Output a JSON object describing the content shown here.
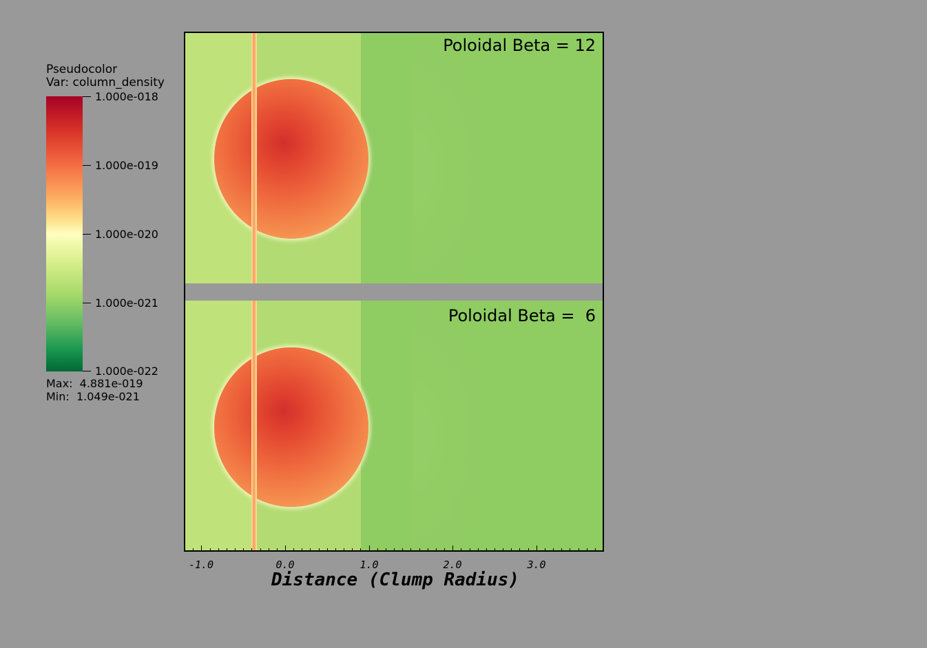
{
  "legend": {
    "title_line1": "Pseudocolor",
    "title_line2": "Var: column_density",
    "ticks": [
      "1.000e-018",
      "1.000e-019",
      "1.000e-020",
      "1.000e-021",
      "1.000e-022"
    ],
    "max_text": "Max:  4.881e-019",
    "min_text": "Min:  1.049e-021"
  },
  "panels": [
    {
      "title": "Poloidal Beta = 12"
    },
    {
      "title": "Poloidal Beta =  6"
    }
  ],
  "axis": {
    "tick_labels": [
      "-1.0",
      "0.0",
      "1.0",
      "2.0",
      "3.0"
    ],
    "title": "Distance (Clump Radius)"
  },
  "colors": {
    "background": "#999999",
    "ambient_left": "#bfe27a",
    "ambient_right": "#8fcc62",
    "clump_core": "#d22f2c"
  }
}
